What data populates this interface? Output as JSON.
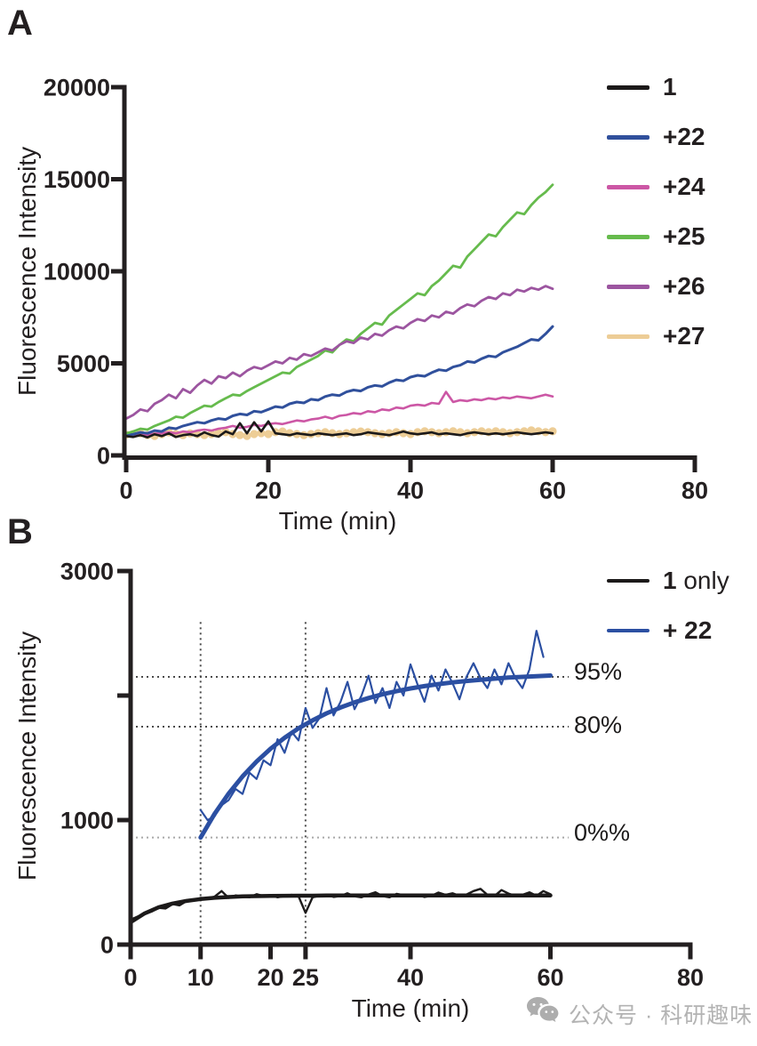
{
  "panels": [
    {
      "label": "A"
    },
    {
      "label": "B"
    }
  ],
  "watermark": {
    "icon": "wechat-icon",
    "text": "公众号 · 科研趣味",
    "color": "#b3b3b3"
  },
  "chart_data": [
    {
      "id": "A",
      "type": "line",
      "xlabel": "Time (min)",
      "ylabel": "Fluorescence Intensity",
      "xlim": [
        0,
        80
      ],
      "ylim": [
        0,
        20000
      ],
      "xticks": [
        0,
        20,
        40,
        60,
        80
      ],
      "yticks": [
        0,
        5000,
        10000,
        15000,
        20000
      ],
      "ytick_labels": [
        "0",
        "5000",
        "10000",
        "15000",
        "20000"
      ],
      "grid": false,
      "legend_position": "right",
      "z_order": [
        5,
        2,
        1,
        3,
        4,
        0
      ],
      "series": [
        {
          "name": "1",
          "legend": "1",
          "color": "#1c1a1a",
          "style": "line",
          "width": 2.6,
          "t0": 0,
          "dt": 1,
          "values": [
            1050,
            1000,
            1100,
            980,
            1150,
            1050,
            1200,
            1000,
            1100,
            1150,
            1050,
            1250,
            1100,
            1020,
            1300,
            1150,
            1750,
            1200,
            1800,
            1300,
            1850,
            1200,
            1150,
            1100,
            1200,
            1150,
            1100,
            1200,
            1150,
            1100,
            1150,
            1200,
            1100,
            1150,
            1250,
            1200,
            1150,
            1100,
            1200,
            1300,
            1200,
            1150,
            1200,
            1250,
            1150,
            1200,
            1150,
            1100,
            1200,
            1250,
            1200,
            1150,
            1200,
            1150,
            1200,
            1250,
            1200,
            1150,
            1200,
            1250,
            1200
          ]
        },
        {
          "name": "+22",
          "legend": "+22",
          "color": "#30509c",
          "style": "line",
          "width": 3,
          "t0": 0,
          "dt": 1,
          "values": [
            1100,
            1150,
            1250,
            1200,
            1350,
            1300,
            1500,
            1450,
            1600,
            1700,
            1800,
            1750,
            1900,
            2000,
            1950,
            2150,
            2250,
            2200,
            2400,
            2350,
            2500,
            2650,
            2600,
            2800,
            2900,
            2850,
            3050,
            3000,
            3200,
            3300,
            3250,
            3450,
            3550,
            3500,
            3700,
            3800,
            3750,
            3950,
            4100,
            4050,
            4250,
            4350,
            4300,
            4500,
            4650,
            4600,
            4800,
            4900,
            5100,
            5050,
            5250,
            5400,
            5350,
            5600,
            5750,
            5900,
            6100,
            6300,
            6250,
            6600,
            7000
          ]
        },
        {
          "name": "+24",
          "legend": "+24",
          "color": "#cc57a5",
          "style": "line",
          "width": 2.6,
          "t0": 0,
          "dt": 1,
          "values": [
            1100,
            1120,
            1150,
            1100,
            1180,
            1200,
            1250,
            1200,
            1300,
            1250,
            1350,
            1400,
            1350,
            1450,
            1500,
            1600,
            1500,
            1550,
            1650,
            1600,
            1700,
            1750,
            1700,
            1800,
            1900,
            1850,
            1950,
            2000,
            2100,
            2000,
            2150,
            2200,
            2300,
            2250,
            2400,
            2350,
            2500,
            2450,
            2600,
            2550,
            2700,
            2750,
            2700,
            2850,
            2800,
            3450,
            2900,
            3000,
            2950,
            3050,
            3000,
            3100,
            3050,
            3150,
            3100,
            3200,
            3150,
            3100,
            3200,
            3300,
            3200
          ]
        },
        {
          "name": "+25",
          "legend": "+25",
          "color": "#66bb4d",
          "style": "line",
          "width": 2.8,
          "t0": 0,
          "dt": 1,
          "values": [
            1200,
            1300,
            1450,
            1400,
            1600,
            1750,
            1900,
            2100,
            2050,
            2300,
            2500,
            2700,
            2650,
            2900,
            3100,
            3300,
            3250,
            3500,
            3700,
            3900,
            4100,
            4300,
            4500,
            4450,
            4800,
            5000,
            5200,
            5400,
            5700,
            5600,
            6000,
            6300,
            6200,
            6600,
            6900,
            7200,
            7100,
            7600,
            7900,
            8200,
            8500,
            8800,
            8700,
            9200,
            9500,
            9900,
            10300,
            10200,
            10800,
            11200,
            11600,
            12000,
            11900,
            12400,
            12800,
            13200,
            13100,
            13600,
            14000,
            14300,
            14700
          ]
        },
        {
          "name": "+26",
          "legend": "+26",
          "color": "#9c55a0",
          "style": "line",
          "width": 2.8,
          "t0": 0,
          "dt": 1,
          "values": [
            2000,
            2200,
            2500,
            2400,
            2800,
            3000,
            3300,
            3100,
            3600,
            3400,
            3800,
            4100,
            3900,
            4300,
            4200,
            4500,
            4300,
            4600,
            4800,
            4700,
            4900,
            5100,
            5000,
            5300,
            5200,
            5500,
            5400,
            5600,
            5800,
            5700,
            6000,
            6200,
            6100,
            6400,
            6300,
            6600,
            6500,
            6800,
            7000,
            6900,
            7200,
            7400,
            7300,
            7600,
            7500,
            7800,
            7700,
            8000,
            8200,
            8100,
            8400,
            8600,
            8500,
            8800,
            8700,
            9000,
            8900,
            9100,
            9000,
            9200,
            9050
          ]
        },
        {
          "name": "+27",
          "legend": "+27",
          "color": "#edcd96",
          "style": "dots",
          "width": 2.4,
          "t0": 0,
          "dt": 1,
          "values": [
            1120,
            1160,
            1200,
            1100,
            1060,
            1150,
            1250,
            1160,
            1100,
            1200,
            1150,
            1100,
            1160,
            1210,
            1260,
            1160,
            1100,
            1060,
            1160,
            1210,
            1160,
            1260,
            1300,
            1210,
            1160,
            1100,
            1160,
            1210,
            1260,
            1210,
            1160,
            1210,
            1260,
            1300,
            1260,
            1210,
            1160,
            1210,
            1260,
            1210,
            1160,
            1260,
            1310,
            1260,
            1210,
            1260,
            1310,
            1260,
            1210,
            1260,
            1310,
            1260,
            1310,
            1260,
            1210,
            1260,
            1310,
            1360,
            1310,
            1260,
            1310
          ]
        }
      ]
    },
    {
      "id": "B",
      "type": "line",
      "xlabel": "Time (min)",
      "ylabel": "Fluorescence Intensity",
      "xlim": [
        0,
        80
      ],
      "ylim": [
        0,
        3000
      ],
      "xticks": [
        0,
        10,
        20,
        25,
        40,
        60,
        80
      ],
      "yticks": [
        0,
        1000,
        2000,
        3000
      ],
      "ytick_labels": [
        "0",
        "1000",
        "",
        "3000"
      ],
      "grid": false,
      "legend_position": "right",
      "thresholds": [
        {
          "label": "95%",
          "value": 2150,
          "color": "#4a4a4a"
        },
        {
          "label": "80%",
          "value": 1750,
          "color": "#4a4a4a"
        },
        {
          "label": "0%%",
          "value": 860,
          "color": "#a8a8a8"
        }
      ],
      "vlines": [
        {
          "t": 10,
          "top": 2590
        },
        {
          "t": 25,
          "top": 2590
        }
      ],
      "legend": [
        {
          "bold": "1",
          "rest": " only",
          "color": "#1c1a1a"
        },
        {
          "bold": "+ 22",
          "rest": "",
          "color": "#2b4fa2"
        }
      ],
      "z_order": [
        0,
        1,
        2,
        3
      ],
      "series": [
        {
          "name": "1 only data",
          "color": "#1c1a1a",
          "style": "line",
          "width": 2.4,
          "t0": 0,
          "dt": 1,
          "values": [
            200,
            225,
            245,
            265,
            295,
            290,
            325,
            315,
            350,
            355,
            375,
            370,
            385,
            430,
            375,
            395,
            385,
            380,
            405,
            390,
            398,
            380,
            390,
            400,
            388,
            255,
            380,
            392,
            400,
            383,
            390,
            412,
            388,
            380,
            402,
            420,
            390,
            380,
            408,
            398,
            390,
            400,
            382,
            392,
            418,
            400,
            412,
            392,
            402,
            430,
            448,
            400,
            390,
            438,
            410,
            392,
            400,
            420,
            392,
            430,
            405
          ]
        },
        {
          "name": "1 only fit",
          "color": "#1c1a1a",
          "style": "line",
          "width": 4.5,
          "t0": 0,
          "dt": 2,
          "values": [
            180,
            251,
            299,
            330,
            351,
            366,
            376,
            382,
            387,
            389,
            391,
            392,
            393,
            393,
            394,
            394,
            394,
            395,
            395,
            395,
            395,
            395,
            395,
            395,
            395,
            395,
            395,
            395,
            395,
            395,
            395
          ]
        },
        {
          "name": "+22 data",
          "color": "#2b4fa2",
          "style": "line",
          "width": 2.2,
          "t0": 10,
          "dt": 1,
          "values": [
            1080,
            1000,
            1030,
            1120,
            1160,
            1250,
            1210,
            1380,
            1330,
            1480,
            1440,
            1650,
            1540,
            1710,
            1640,
            1900,
            1740,
            1820,
            2060,
            1840,
            1950,
            2110,
            1890,
            2000,
            2160,
            1940,
            2060,
            1900,
            2110,
            2000,
            2250,
            2090,
            1950,
            2160,
            2040,
            2210,
            2100,
            1970,
            2150,
            2260,
            2140,
            2060,
            2210,
            2090,
            2260,
            2140,
            2060,
            2210,
            2520,
            2310
          ]
        },
        {
          "name": "+22 fit",
          "color": "#2b4fa2",
          "style": "line",
          "width": 5,
          "t0": 10,
          "dt": 2,
          "values": [
            860,
            1050,
            1212,
            1351,
            1470,
            1573,
            1661,
            1737,
            1801,
            1857,
            1904,
            1945,
            1980,
            2010,
            2035,
            2057,
            2076,
            2092,
            2106,
            2117,
            2127,
            2136,
            2144,
            2150,
            2155,
            2161
          ]
        }
      ]
    }
  ]
}
